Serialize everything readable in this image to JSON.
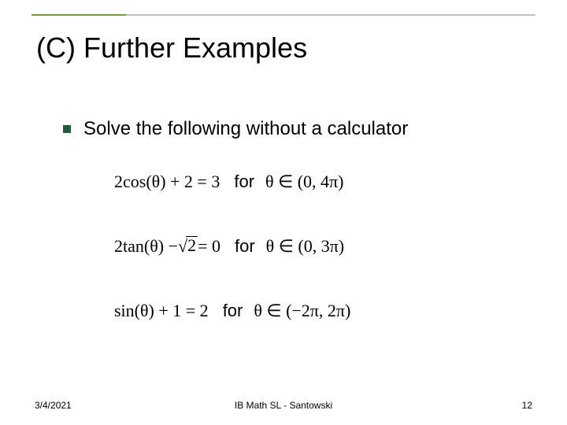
{
  "colors": {
    "rule_gray": "#bfbfbf",
    "rule_green": "#7a9940",
    "bullet_green": "#1f5d3d",
    "text": "#000000",
    "background": "#ffffff"
  },
  "typography": {
    "title_fontsize": 36,
    "bullet_fontsize": 24,
    "equation_fontsize": 22,
    "footer_fontsize": 12,
    "title_font": "Arial",
    "equation_font": "Times New Roman"
  },
  "title": "(C) Further Examples",
  "bullet": "Solve the following without a calculator",
  "equations": {
    "eq1": {
      "lhs": "2cos(θ) + 2 = 3",
      "for_word": "for",
      "domain": "θ ∈ (0, 4π)"
    },
    "eq2": {
      "lhs_pre": "2tan(θ) − ",
      "sqrt_val": "2",
      "lhs_post": " = 0",
      "for_word": "for",
      "domain": "θ ∈ (0, 3π)"
    },
    "eq3": {
      "lhs": "sin(θ) + 1 = 2",
      "for_word": "for",
      "domain": "θ ∈ (−2π, 2π)"
    }
  },
  "footer": {
    "date": "3/4/2021",
    "center": "IB Math SL - Santowski",
    "page": "12"
  }
}
